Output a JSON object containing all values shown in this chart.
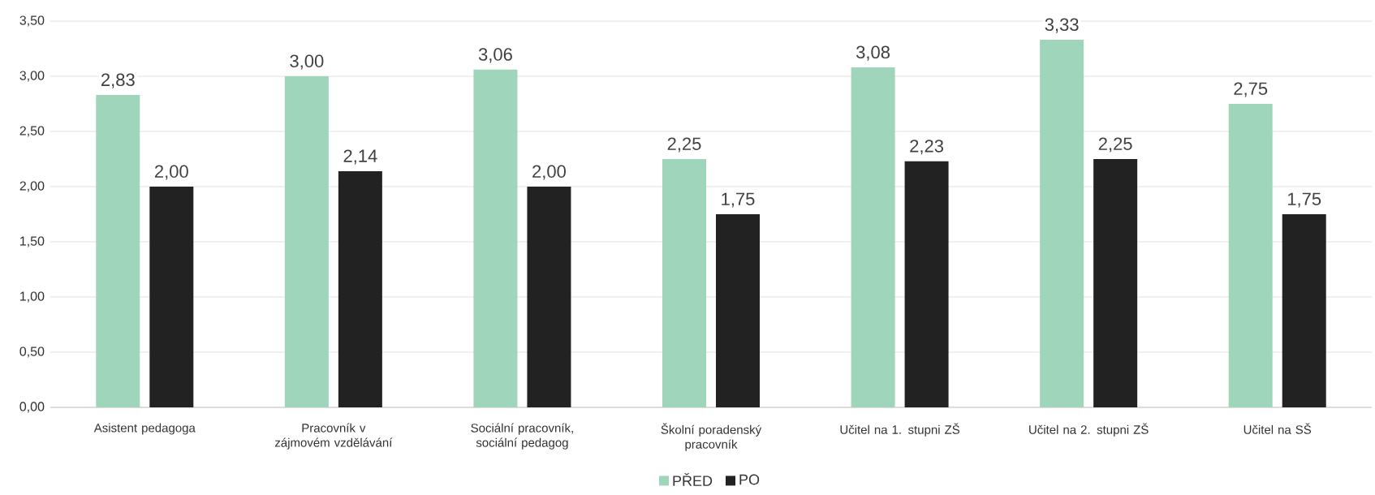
{
  "chart_data": {
    "type": "bar",
    "categories": [
      "Asistent pedagoga",
      "Pracovník v zájmovém vzdělávání",
      "Sociální pracovník, sociální pedagog",
      "Školní poradenský pracovník",
      "Učitel na 1. stupni ZŠ",
      "Učitel na 2. stupni ZŠ",
      "Učitel na SŠ"
    ],
    "series": [
      {
        "name": "PŘED",
        "color": "#9fd5bb",
        "values": [
          2.83,
          3.0,
          3.06,
          2.25,
          3.08,
          3.33,
          2.75
        ],
        "value_labels": [
          "2,83",
          "3,00",
          "3,06",
          "2,25",
          "3,08",
          "3,33",
          "2,75"
        ]
      },
      {
        "name": "PO",
        "color": "#222222",
        "values": [
          2.0,
          2.14,
          2.0,
          1.75,
          2.23,
          2.25,
          1.75
        ],
        "value_labels": [
          "2,00",
          "2,14",
          "2,00",
          "1,75",
          "2,23",
          "2,25",
          "1,75"
        ]
      }
    ],
    "ylim": [
      0,
      3.5
    ],
    "yticks": [
      {
        "value": 0,
        "label": "0,00"
      },
      {
        "value": 0.5,
        "label": "0,50"
      },
      {
        "value": 1,
        "label": "1,00"
      },
      {
        "value": 1.5,
        "label": "1,50"
      },
      {
        "value": 2,
        "label": "2,00"
      },
      {
        "value": 2.5,
        "label": "2,50"
      },
      {
        "value": 3,
        "label": "3,00"
      },
      {
        "value": 3.5,
        "label": "3,50"
      }
    ],
    "grid": "y",
    "legend": "bottom"
  }
}
